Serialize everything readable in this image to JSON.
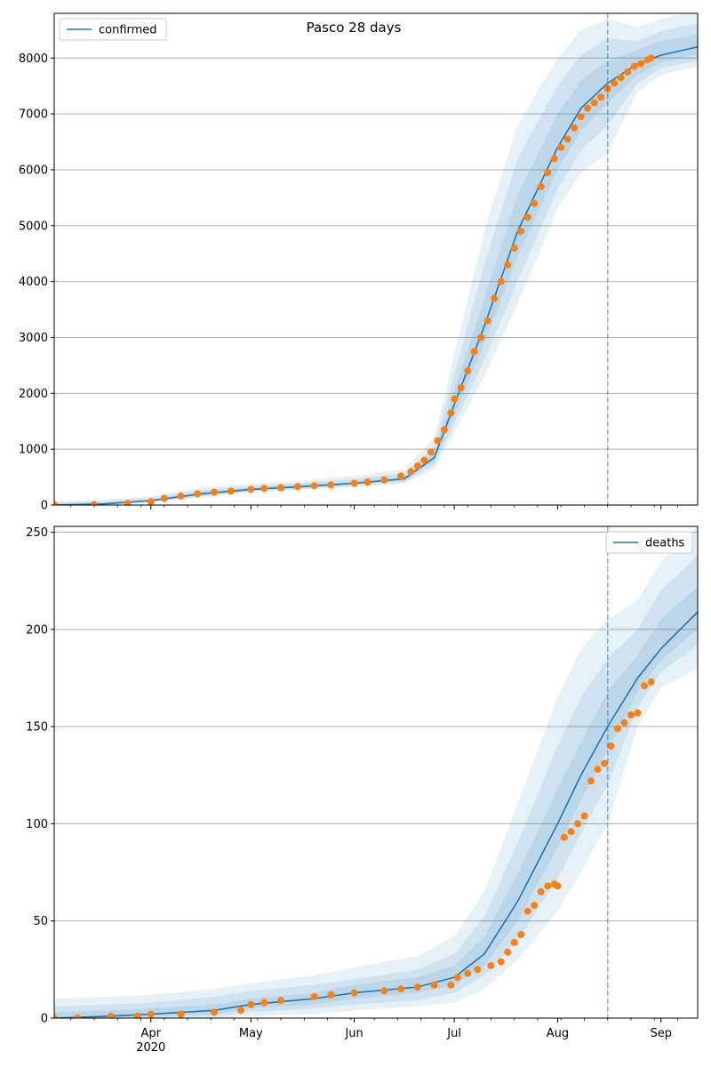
{
  "colors": {
    "model": "#1f77b4",
    "observed": "#ff7f0e",
    "band": "#1f77b4",
    "grid": "#b0b0b0"
  },
  "chart_data": [
    {
      "type": "line",
      "title": "Pasco 28 days",
      "legend": {
        "label": "confirmed",
        "placement": "top-left"
      },
      "grid": "horizontal",
      "xlim": [
        "2020-03-03",
        "2020-09-12"
      ],
      "ylim": [
        0,
        8800
      ],
      "yticks": [
        0,
        1000,
        2000,
        3000,
        4000,
        5000,
        6000,
        7000,
        8000
      ],
      "forecast_start": "2020-08-16",
      "model": {
        "x": [
          "2020-03-03",
          "2020-03-18",
          "2020-04-01",
          "2020-04-16",
          "2020-05-01",
          "2020-05-16",
          "2020-06-01",
          "2020-06-16",
          "2020-06-25",
          "2020-07-01",
          "2020-07-10",
          "2020-07-20",
          "2020-08-01",
          "2020-08-08",
          "2020-08-16",
          "2020-08-25",
          "2020-09-01",
          "2020-09-12"
        ],
        "y": [
          0,
          20,
          80,
          200,
          280,
          330,
          390,
          470,
          850,
          1800,
          3200,
          4900,
          6400,
          7100,
          7550,
          7900,
          8050,
          8200
        ],
        "bands": [
          {
            "lower": [
              0,
              0,
              40,
              130,
              220,
              270,
              320,
              380,
              650,
              1300,
              2300,
              3600,
              5300,
              5950,
              6300,
              7400,
              7700,
              7850
            ],
            "upper": [
              60,
              100,
              160,
              310,
              380,
              440,
              520,
              640,
              1200,
              2700,
              4900,
              6800,
              8000,
              8500,
              8700,
              8550,
              8700,
              8850
            ]
          },
          {
            "lower": [
              0,
              5,
              55,
              155,
              240,
              290,
              345,
              410,
              720,
              1450,
              2600,
              4000,
              5650,
              6350,
              6800,
              7550,
              7820,
              7950
            ],
            "upper": [
              40,
              70,
              125,
              265,
              340,
              395,
              470,
              570,
              1050,
              2350,
              4300,
              6200,
              7500,
              8050,
              8350,
              8300,
              8480,
              8620
            ]
          },
          {
            "lower": [
              0,
              12,
              68,
              178,
              262,
              312,
              368,
              440,
              790,
              1620,
              2900,
              4450,
              6000,
              6700,
              7200,
              7700,
              7920,
              8060
            ],
            "upper": [
              25,
              45,
              100,
              230,
              310,
              360,
              425,
              510,
              930,
              2050,
              3700,
              5550,
              7000,
              7600,
              7950,
              8150,
              8300,
              8420
            ]
          }
        ]
      },
      "observed": {
        "x": [
          "2020-03-03",
          "2020-03-15",
          "2020-03-25",
          "2020-04-01",
          "2020-04-05",
          "2020-04-10",
          "2020-04-15",
          "2020-04-20",
          "2020-04-25",
          "2020-05-01",
          "2020-05-05",
          "2020-05-10",
          "2020-05-15",
          "2020-05-20",
          "2020-05-25",
          "2020-06-01",
          "2020-06-05",
          "2020-06-10",
          "2020-06-15",
          "2020-06-18",
          "2020-06-20",
          "2020-06-22",
          "2020-06-24",
          "2020-06-26",
          "2020-06-28",
          "2020-06-30",
          "2020-07-01",
          "2020-07-03",
          "2020-07-05",
          "2020-07-07",
          "2020-07-09",
          "2020-07-11",
          "2020-07-13",
          "2020-07-15",
          "2020-07-17",
          "2020-07-19",
          "2020-07-21",
          "2020-07-23",
          "2020-07-25",
          "2020-07-27",
          "2020-07-29",
          "2020-07-31",
          "2020-08-02",
          "2020-08-04",
          "2020-08-06",
          "2020-08-08",
          "2020-08-10",
          "2020-08-12",
          "2020-08-14",
          "2020-08-16",
          "2020-08-18",
          "2020-08-20",
          "2020-08-22",
          "2020-08-24",
          "2020-08-26",
          "2020-08-28",
          "2020-08-29"
        ],
        "y": [
          5,
          10,
          30,
          60,
          120,
          160,
          200,
          230,
          250,
          280,
          300,
          310,
          330,
          345,
          360,
          390,
          410,
          450,
          520,
          600,
          700,
          800,
          950,
          1150,
          1350,
          1650,
          1900,
          2100,
          2400,
          2750,
          3000,
          3300,
          3700,
          4000,
          4300,
          4600,
          4900,
          5150,
          5400,
          5700,
          5950,
          6200,
          6400,
          6550,
          6750,
          6950,
          7100,
          7200,
          7300,
          7450,
          7550,
          7650,
          7750,
          7850,
          7900,
          7970,
          8000
        ]
      }
    },
    {
      "type": "line",
      "title": "",
      "legend": {
        "label": "deaths",
        "placement": "top-right"
      },
      "grid": "horizontal",
      "xlim": [
        "2020-03-03",
        "2020-09-12"
      ],
      "ylim": [
        0,
        253
      ],
      "yticks": [
        0,
        50,
        100,
        150,
        200,
        250
      ],
      "xticks": [
        "2020-04-01",
        "2020-05-01",
        "2020-06-01",
        "2020-07-01",
        "2020-08-01",
        "2020-09-01"
      ],
      "xtick_labels": [
        "Apr",
        "May",
        "Jun",
        "Jul",
        "Aug",
        "Sep"
      ],
      "year_label": "2020",
      "forecast_start": "2020-08-16",
      "model": {
        "x": [
          "2020-03-03",
          "2020-03-20",
          "2020-04-01",
          "2020-04-20",
          "2020-05-01",
          "2020-05-20",
          "2020-06-01",
          "2020-06-20",
          "2020-07-01",
          "2020-07-10",
          "2020-07-20",
          "2020-08-01",
          "2020-08-08",
          "2020-08-16",
          "2020-08-25",
          "2020-09-01",
          "2020-09-12"
        ],
        "y": [
          0,
          1,
          2,
          4,
          7,
          10,
          13,
          16,
          21,
          33,
          60,
          100,
          125,
          150,
          175,
          190,
          209
        ],
        "bands": [
          {
            "lower": [
              0,
              0,
              0,
              0,
              1,
              2,
              4,
              6,
              8,
              15,
              30,
              55,
              75,
              100,
              150,
              170,
              180
            ],
            "upper": [
              10,
              11,
              12,
              15,
              18,
              22,
              26,
              32,
              42,
              65,
              110,
              165,
              190,
              205,
              215,
              235,
              253
            ]
          },
          {
            "lower": [
              0,
              0,
              0,
              1,
              3,
              5,
              7,
              9,
              13,
              22,
              40,
              72,
              95,
              120,
              160,
              178,
              192
            ],
            "upper": [
              6,
              7,
              8,
              11,
              14,
              17,
              20,
              25,
              33,
              52,
              90,
              140,
              165,
              185,
              200,
              220,
              238
            ]
          },
          {
            "lower": [
              0,
              0,
              1,
              2,
              5,
              7,
              10,
              13,
              17,
              27,
              50,
              88,
              112,
              138,
              168,
              184,
              200
            ],
            "upper": [
              3,
              4,
              5,
              7,
              10,
              13,
              17,
              21,
              27,
              42,
              74,
              118,
              142,
              168,
              187,
              205,
              222
            ]
          }
        ]
      },
      "observed": {
        "x": [
          "2020-03-03",
          "2020-03-10",
          "2020-03-20",
          "2020-03-28",
          "2020-04-01",
          "2020-04-10",
          "2020-04-20",
          "2020-04-28",
          "2020-05-01",
          "2020-05-05",
          "2020-05-10",
          "2020-05-20",
          "2020-05-25",
          "2020-06-01",
          "2020-06-10",
          "2020-06-15",
          "2020-06-20",
          "2020-06-25",
          "2020-06-30",
          "2020-07-02",
          "2020-07-05",
          "2020-07-08",
          "2020-07-12",
          "2020-07-15",
          "2020-07-17",
          "2020-07-19",
          "2020-07-21",
          "2020-07-23",
          "2020-07-25",
          "2020-07-27",
          "2020-07-29",
          "2020-07-31",
          "2020-08-01",
          "2020-08-03",
          "2020-08-05",
          "2020-08-07",
          "2020-08-09",
          "2020-08-11",
          "2020-08-13",
          "2020-08-15",
          "2020-08-17",
          "2020-08-19",
          "2020-08-21",
          "2020-08-23",
          "2020-08-25",
          "2020-08-27",
          "2020-08-29"
        ],
        "y": [
          0,
          0,
          1,
          1,
          2,
          2,
          3,
          4,
          7,
          8,
          9,
          11,
          12,
          13,
          14,
          15,
          16,
          17,
          17,
          21,
          23,
          25,
          27,
          29,
          34,
          39,
          43,
          55,
          58,
          65,
          68,
          69,
          68,
          93,
          96,
          100,
          104,
          122,
          128,
          131,
          140,
          149,
          152,
          156,
          157,
          171,
          173
        ]
      }
    }
  ]
}
